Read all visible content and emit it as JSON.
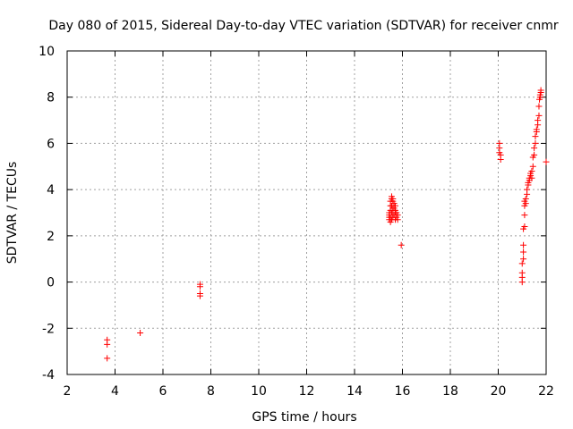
{
  "chart_data": {
    "type": "scatter",
    "title": "Day 080 of 2015, Sidereal Day-to-day VTEC variation (SDTVAR) for receiver cnmr",
    "xlabel": "GPS time / hours",
    "ylabel": "SDTVAR / TECUs",
    "xlim": [
      2,
      22
    ],
    "ylim": [
      -4,
      10
    ],
    "xticks": [
      "2",
      "4",
      "6",
      "8",
      "10",
      "12",
      "14",
      "16",
      "18",
      "20",
      "22"
    ],
    "yticks": [
      "-4",
      "-2",
      "0",
      "2",
      "4",
      "6",
      "8",
      "10"
    ],
    "grid": true,
    "marker": "+",
    "color": "#ff0000",
    "series": [
      {
        "name": "SDTVAR",
        "points": [
          [
            3.67,
            -2.5
          ],
          [
            3.67,
            -2.7
          ],
          [
            3.67,
            -3.3
          ],
          [
            5.05,
            -2.2
          ],
          [
            7.55,
            -0.1
          ],
          [
            7.55,
            -0.2
          ],
          [
            7.55,
            -0.5
          ],
          [
            7.55,
            -0.6
          ],
          [
            15.45,
            2.7
          ],
          [
            15.45,
            2.8
          ],
          [
            15.45,
            2.9
          ],
          [
            15.45,
            3.0
          ],
          [
            15.5,
            2.6
          ],
          [
            15.5,
            2.8
          ],
          [
            15.5,
            3.1
          ],
          [
            15.5,
            3.3
          ],
          [
            15.5,
            3.5
          ],
          [
            15.55,
            2.7
          ],
          [
            15.55,
            3.0
          ],
          [
            15.55,
            3.3
          ],
          [
            15.55,
            3.6
          ],
          [
            15.55,
            3.7
          ],
          [
            15.6,
            2.8
          ],
          [
            15.6,
            3.0
          ],
          [
            15.6,
            3.2
          ],
          [
            15.6,
            3.5
          ],
          [
            15.6,
            3.6
          ],
          [
            15.65,
            2.9
          ],
          [
            15.65,
            3.2
          ],
          [
            15.65,
            3.4
          ],
          [
            15.7,
            2.7
          ],
          [
            15.7,
            3.0
          ],
          [
            15.7,
            3.1
          ],
          [
            15.7,
            3.3
          ],
          [
            15.75,
            2.8
          ],
          [
            15.75,
            3.0
          ],
          [
            15.8,
            2.7
          ],
          [
            15.8,
            2.9
          ],
          [
            15.95,
            1.6
          ],
          [
            20.05,
            6.0
          ],
          [
            20.05,
            5.8
          ],
          [
            20.05,
            5.6
          ],
          [
            20.1,
            5.5
          ],
          [
            20.1,
            5.3
          ],
          [
            21.0,
            0.0
          ],
          [
            21.0,
            0.2
          ],
          [
            21.0,
            0.4
          ],
          [
            21.0,
            0.8
          ],
          [
            21.05,
            1.0
          ],
          [
            21.05,
            1.3
          ],
          [
            21.05,
            1.6
          ],
          [
            21.05,
            2.3
          ],
          [
            21.1,
            2.4
          ],
          [
            21.1,
            2.9
          ],
          [
            21.1,
            3.3
          ],
          [
            21.1,
            3.5
          ],
          [
            21.15,
            3.4
          ],
          [
            21.15,
            3.6
          ],
          [
            21.2,
            3.8
          ],
          [
            21.2,
            4.0
          ],
          [
            21.25,
            4.2
          ],
          [
            21.25,
            4.3
          ],
          [
            21.3,
            4.5
          ],
          [
            21.3,
            4.4
          ],
          [
            21.35,
            4.6
          ],
          [
            21.35,
            4.7
          ],
          [
            21.4,
            4.8
          ],
          [
            21.4,
            4.5
          ],
          [
            21.45,
            5.0
          ],
          [
            21.45,
            5.4
          ],
          [
            21.5,
            5.5
          ],
          [
            21.5,
            5.8
          ],
          [
            21.55,
            6.0
          ],
          [
            21.55,
            6.3
          ],
          [
            21.6,
            6.5
          ],
          [
            21.6,
            6.6
          ],
          [
            21.65,
            6.8
          ],
          [
            21.65,
            7.0
          ],
          [
            21.7,
            7.2
          ],
          [
            21.7,
            7.6
          ],
          [
            21.72,
            7.9
          ],
          [
            21.75,
            8.0
          ],
          [
            21.75,
            8.1
          ],
          [
            21.78,
            8.2
          ],
          [
            21.78,
            8.3
          ],
          [
            22.0,
            5.2
          ]
        ]
      }
    ]
  }
}
